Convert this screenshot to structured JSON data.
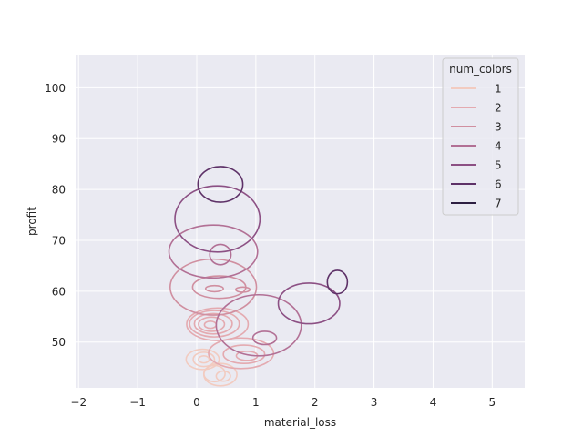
{
  "chart_data": {
    "type": "kde_contour",
    "title": "",
    "xlabel": "material_loss",
    "ylabel": "profit",
    "xlim": [
      -2.05,
      5.55
    ],
    "ylim": [
      41,
      106.5
    ],
    "xticks": [
      -2,
      -1,
      0,
      1,
      2,
      3,
      4,
      5
    ],
    "xtick_labels": [
      "−2",
      "−1",
      "0",
      "1",
      "2",
      "3",
      "4",
      "5"
    ],
    "yticks": [
      50,
      60,
      70,
      80,
      90,
      100
    ],
    "ytick_labels": [
      "50",
      "60",
      "70",
      "80",
      "90",
      "100"
    ],
    "grid": true,
    "background": "#eaeaf2",
    "legend": {
      "title": "num_colors",
      "placement": "top-right",
      "entries": [
        {
          "label": "1",
          "color": "#f2cbc0"
        },
        {
          "label": "2",
          "color": "#e4aab0"
        },
        {
          "label": "3",
          "color": "#d08fa0"
        },
        {
          "label": "4",
          "color": "#b27095"
        },
        {
          "label": "5",
          "color": "#8c5084"
        },
        {
          "label": "6",
          "color": "#5e3268"
        },
        {
          "label": "7",
          "color": "#2d1f42"
        }
      ]
    },
    "series": [
      {
        "name": "1",
        "color": "#f2cbc0",
        "contours": [
          {
            "cx": 0.4,
            "cy": 43.6,
            "rx": 0.28,
            "ry": 2.2
          },
          {
            "cx": 0.3,
            "cy": 43.8,
            "rx": 0.18,
            "ry": 1.6
          },
          {
            "cx": 0.45,
            "cy": 43.3,
            "rx": 0.12,
            "ry": 1.0
          },
          {
            "cx": 0.1,
            "cy": 46.6,
            "rx": 0.28,
            "ry": 2.0
          },
          {
            "cx": 0.12,
            "cy": 46.6,
            "rx": 0.18,
            "ry": 1.4
          },
          {
            "cx": 0.12,
            "cy": 46.6,
            "rx": 0.09,
            "ry": 0.7
          }
        ]
      },
      {
        "name": "2",
        "color": "#e4aab0",
        "contours": [
          {
            "cx": 0.35,
            "cy": 53.5,
            "rx": 0.52,
            "ry": 3.2
          },
          {
            "cx": 0.3,
            "cy": 53.6,
            "rx": 0.42,
            "ry": 2.6
          },
          {
            "cx": 0.28,
            "cy": 53.6,
            "rx": 0.32,
            "ry": 2.0
          },
          {
            "cx": 0.25,
            "cy": 53.5,
            "rx": 0.22,
            "ry": 1.4
          },
          {
            "cx": 0.23,
            "cy": 53.4,
            "rx": 0.1,
            "ry": 0.7
          },
          {
            "cx": 0.75,
            "cy": 47.8,
            "rx": 0.55,
            "ry": 3.0
          },
          {
            "cx": 0.8,
            "cy": 47.6,
            "rx": 0.35,
            "ry": 1.8
          },
          {
            "cx": 0.85,
            "cy": 47.3,
            "rx": 0.18,
            "ry": 0.9
          }
        ]
      },
      {
        "name": "3",
        "color": "#d08fa0",
        "contours": [
          {
            "cx": 0.28,
            "cy": 60.8,
            "rx": 0.73,
            "ry": 5.5
          },
          {
            "cx": 0.38,
            "cy": 60.8,
            "rx": 0.45,
            "ry": 2.2
          },
          {
            "cx": 0.78,
            "cy": 60.3,
            "rx": 0.12,
            "ry": 0.5
          },
          {
            "cx": 0.3,
            "cy": 60.5,
            "rx": 0.15,
            "ry": 0.6
          }
        ]
      },
      {
        "name": "4",
        "color": "#b27095",
        "contours": [
          {
            "cx": 0.28,
            "cy": 67.8,
            "rx": 0.75,
            "ry": 5.2
          },
          {
            "cx": 0.4,
            "cy": 67.2,
            "rx": 0.18,
            "ry": 2.0
          },
          {
            "cx": 1.05,
            "cy": 53.3,
            "rx": 0.72,
            "ry": 6.0
          },
          {
            "cx": 1.15,
            "cy": 50.8,
            "rx": 0.2,
            "ry": 1.3
          }
        ]
      },
      {
        "name": "5",
        "color": "#8c5084",
        "contours": [
          {
            "cx": 0.35,
            "cy": 74.2,
            "rx": 0.72,
            "ry": 6.5
          },
          {
            "cx": 1.9,
            "cy": 57.6,
            "rx": 0.52,
            "ry": 4.0
          }
        ]
      },
      {
        "name": "6",
        "color": "#5e3268",
        "contours": [
          {
            "cx": 0.4,
            "cy": 81.0,
            "rx": 0.38,
            "ry": 3.5
          },
          {
            "cx": 2.38,
            "cy": 61.8,
            "rx": 0.17,
            "ry": 2.3
          }
        ]
      },
      {
        "name": "7",
        "color": "#2d1f42",
        "contours": []
      }
    ]
  }
}
